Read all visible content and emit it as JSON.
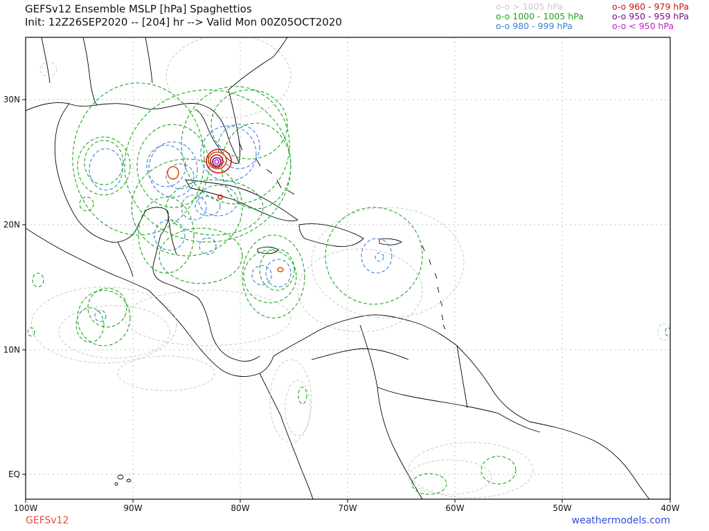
{
  "title": {
    "line1": "GEFSv12 Ensemble MSLP [hPa] Spaghettios",
    "line2": "Init: 12Z26SEP2020 -- [204] hr --> Valid Mon 00Z05OCT2020"
  },
  "legend": {
    "left": [
      {
        "label": "o-o > 1005 hPa",
        "color": "#c8c8c8"
      },
      {
        "label": "o-o 1000 - 1005 hPa",
        "color": "#1aa51a"
      },
      {
        "label": "o-o 980 - 999 hPa",
        "color": "#3a7fd5"
      }
    ],
    "right": [
      {
        "label": "o-o 960 - 979 hPa",
        "color": "#cc1111"
      },
      {
        "label": "o-o 950 - 959 hPa",
        "color": "#7a0a7a"
      },
      {
        "label": "o-o < 950 hPa",
        "color": "#c020c0"
      }
    ]
  },
  "axes": {
    "x_ticks": [
      "100W",
      "90W",
      "80W",
      "70W",
      "60W",
      "50W",
      "40W"
    ],
    "y_ticks": [
      "30N",
      "20N",
      "10N",
      "EQ"
    ]
  },
  "footer": {
    "model": "GEFSv12",
    "site": "weathermodels.com"
  }
}
